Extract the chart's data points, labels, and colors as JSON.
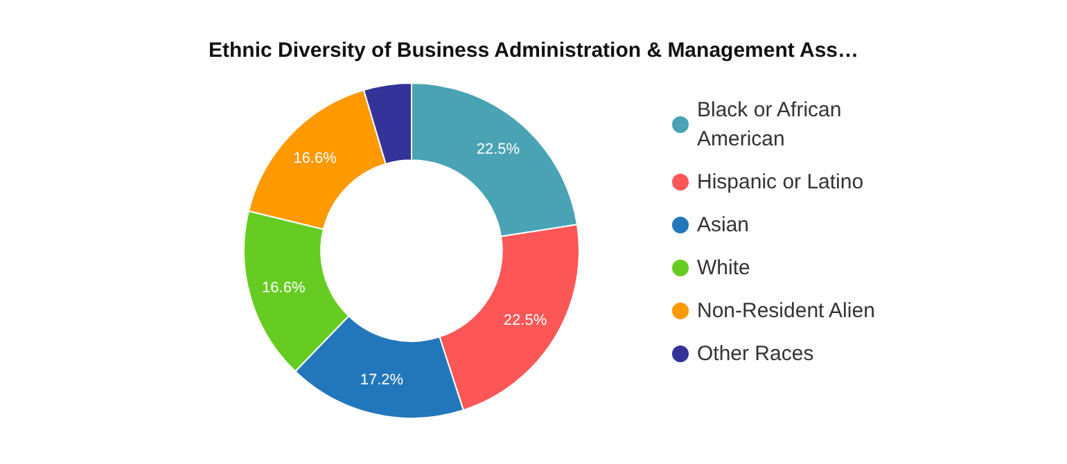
{
  "chart_data": {
    "type": "donut",
    "title": "Ethnic Diversity of Business Administration & Management Ass…",
    "categories": [
      "Black or African American",
      "Hispanic or Latino",
      "Asian",
      "White",
      "Non-Resident Alien",
      "Other Races"
    ],
    "values": [
      22.5,
      22.5,
      17.2,
      16.6,
      16.6,
      4.6
    ],
    "colors": [
      "#4aa3b5",
      "#fc5656",
      "#2277bb",
      "#66cc22",
      "#ff9900",
      "#333399"
    ],
    "value_labels": [
      "22.5%",
      "22.5%",
      "17.2%",
      "16.6%",
      "16.6%",
      null
    ],
    "legend": "right"
  }
}
